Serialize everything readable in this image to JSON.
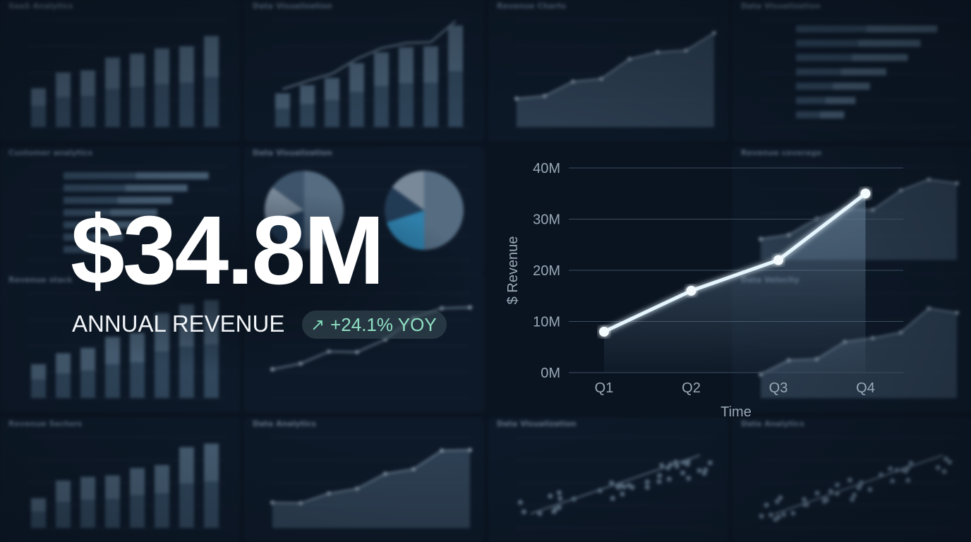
{
  "kpi": {
    "value": "$34.8M",
    "label": "ANNUAL REVENUE",
    "badge_arrow": "↗",
    "badge_text": "+24.1% YOY",
    "badge_color": "#8fe0c2"
  },
  "chart_data": {
    "type": "line",
    "title": "",
    "xlabel": "Time",
    "ylabel": "$ Revenue",
    "categories": [
      "Q1",
      "Q2",
      "Q3",
      "Q4"
    ],
    "series": [
      {
        "name": "Revenue",
        "values": [
          8,
          16,
          22,
          35
        ]
      }
    ],
    "ylim": [
      0,
      40
    ],
    "y_ticks": [
      0,
      10,
      20,
      30,
      40
    ],
    "y_tick_labels": [
      "0M",
      "10M",
      "20M",
      "30M",
      "40M"
    ],
    "grid": true,
    "line_color": "#e6f6ff"
  },
  "background": {
    "panels": [
      {
        "title": "SaaS Analytics",
        "kind": "bars"
      },
      {
        "title": "Data Visualization",
        "kind": "barline"
      },
      {
        "title": "Revenue Charts",
        "kind": "area"
      },
      {
        "title": "Data Visualization",
        "kind": "hbars"
      },
      {
        "title": "Customer analytics",
        "kind": "hbars"
      },
      {
        "title": "Data Visualization",
        "kind": "pies"
      },
      {
        "title": "Revenue coverage",
        "kind": "area"
      },
      {
        "title": "Revenue stack",
        "kind": "bars"
      },
      {
        "title": "",
        "kind": "line"
      },
      {
        "title": "Data Velocity",
        "kind": "area"
      },
      {
        "title": "Revenue Sectors",
        "kind": "bars"
      },
      {
        "title": "Data Analytics",
        "kind": "area"
      },
      {
        "title": "Data Visualization",
        "kind": "scatter"
      },
      {
        "title": "Data Analytics",
        "kind": "scatter"
      }
    ]
  }
}
